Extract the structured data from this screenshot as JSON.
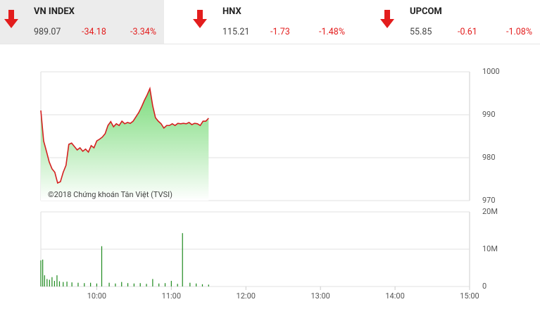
{
  "header": {
    "indices": [
      {
        "name": "VN INDEX",
        "value": "989.07",
        "change": "-34.18",
        "percent": "-3.34%"
      },
      {
        "name": "HNX",
        "value": "115.21",
        "change": "-1.73",
        "percent": "-1.48%"
      },
      {
        "name": "UPCOM",
        "value": "55.85",
        "change": "-0.61",
        "percent": "-1.08%"
      }
    ]
  },
  "chart_data": [
    {
      "type": "area",
      "annotation": "©2018 Chứng khoán Tân Việt (TVSI)",
      "line_color": "#d42020",
      "fill_color": "#6fd86f",
      "x": [
        555,
        557.25,
        559.5,
        561.75,
        564,
        566.25,
        568.5,
        570.75,
        573,
        575.25,
        577.5,
        579.75,
        582,
        584.25,
        586.5,
        588.75,
        591,
        593.25,
        595.5,
        597.75,
        600,
        602.25,
        604.5,
        606.75,
        609,
        611.25,
        613.5,
        615.75,
        618,
        620.25,
        622.5,
        624.75,
        627,
        629.25,
        631.5,
        633.75,
        636,
        638.25,
        640.5,
        642.75,
        645,
        647.25,
        649.5,
        651.75,
        654,
        656.25,
        658.5,
        660.75,
        663,
        665.25,
        667.5,
        669.75,
        672,
        674.25,
        676.5,
        678.75,
        681,
        683.25,
        685.5,
        687.75,
        690
      ],
      "values": [
        991.0,
        983.9,
        981.5,
        979.0,
        977.4,
        976.6,
        974.1,
        974.4,
        976.6,
        978.2,
        983.1,
        983.4,
        982.6,
        981.8,
        982.3,
        981.5,
        982.0,
        981.3,
        982.8,
        982.3,
        983.9,
        984.3,
        984.8,
        985.6,
        987.5,
        988.4,
        987.2,
        987.9,
        987.5,
        988.5,
        987.9,
        988.2,
        988.0,
        988.5,
        989.5,
        990.5,
        991.8,
        993.3,
        994.6,
        996.1,
        992.1,
        989.3,
        988.5,
        987.9,
        986.9,
        987.5,
        987.5,
        987.9,
        987.5,
        988.0,
        987.9,
        988.0,
        987.9,
        988.2,
        987.7,
        988.0,
        987.9,
        987.5,
        988.5,
        988.5,
        989.2
      ],
      "xlim": [
        555,
        900
      ],
      "ylim": [
        970,
        1000
      ],
      "yticks": [
        970,
        980,
        990,
        1000
      ],
      "grid": true
    },
    {
      "type": "bar",
      "color": "#1e8a1e",
      "x": [
        555,
        556.5,
        558,
        560,
        562,
        564,
        566,
        568,
        570,
        573,
        576,
        580,
        585,
        590,
        595,
        600,
        604,
        610,
        615,
        620,
        625,
        630,
        635,
        640,
        645,
        650,
        655,
        660,
        665,
        669,
        675,
        680,
        685,
        690
      ],
      "values": [
        7.0,
        7.2,
        3.0,
        2.0,
        1.8,
        2.5,
        1.5,
        3.0,
        1.4,
        1.2,
        1.3,
        1.1,
        1.0,
        0.9,
        1.0,
        0.8,
        10.8,
        1.0,
        0.8,
        1.2,
        0.9,
        0.8,
        0.9,
        0.7,
        2.0,
        0.8,
        0.9,
        1.5,
        0.7,
        14.3,
        1.0,
        0.8,
        0.6,
        0.5
      ],
      "xlim": [
        555,
        900
      ],
      "xticks": [
        {
          "value": 600,
          "label": "10:00"
        },
        {
          "value": 660,
          "label": "11:00"
        },
        {
          "value": 720,
          "label": "12:00"
        },
        {
          "value": 780,
          "label": "13:00"
        },
        {
          "value": 840,
          "label": "14:00"
        },
        {
          "value": 900,
          "label": "15:00"
        }
      ],
      "ylim": [
        0,
        20
      ],
      "yticks": [
        0,
        {
          "value": 10,
          "label": "10M"
        },
        {
          "value": 20,
          "label": "20M"
        }
      ],
      "grid": true
    }
  ]
}
